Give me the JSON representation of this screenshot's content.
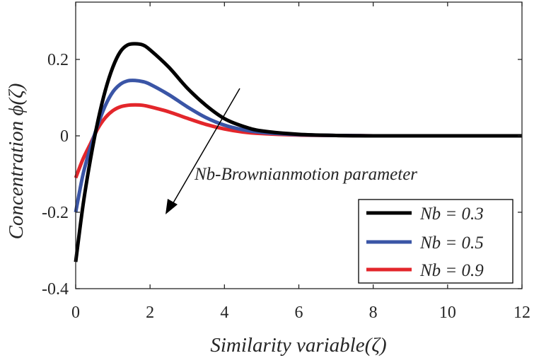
{
  "chart_data": {
    "type": "line",
    "xlabel": "Similarity variable(ζ)",
    "ylabel": "Concentration ϕ(ζ)",
    "xlim": [
      0,
      12
    ],
    "ylim": [
      -0.4,
      0.35
    ],
    "xticks": [
      0,
      2,
      4,
      6,
      8,
      10,
      12
    ],
    "xtick_labels": [
      "0",
      "2",
      "4",
      "6",
      "8",
      "10",
      "12"
    ],
    "yticks": [
      -0.4,
      -0.2,
      0,
      0.2
    ],
    "ytick_labels": [
      "-0.4",
      "-0.2",
      "0",
      "0.2"
    ],
    "grid": false,
    "legend_position": "bottom-right",
    "annotation": "Nb-Brownianmotion parameter",
    "x": [
      0,
      0.2,
      0.4,
      0.6,
      0.8,
      1.0,
      1.2,
      1.4,
      1.6,
      1.8,
      2.0,
      2.5,
      3.0,
      3.5,
      4.0,
      4.5,
      5.0,
      6.0,
      7.0,
      8.0,
      9.0,
      10.0,
      11.0,
      12.0
    ],
    "series": [
      {
        "name": "Nb = 0.3",
        "color": "#000000",
        "values": [
          -0.33,
          -0.18,
          -0.06,
          0.04,
          0.12,
          0.18,
          0.22,
          0.238,
          0.241,
          0.238,
          0.225,
          0.18,
          0.125,
          0.08,
          0.045,
          0.025,
          0.013,
          0.004,
          0.001,
          0,
          0,
          0,
          0,
          0
        ]
      },
      {
        "name": "Nb = 0.5",
        "color": "#3a55a6",
        "values": [
          -0.2,
          -0.1,
          -0.03,
          0.03,
          0.08,
          0.115,
          0.135,
          0.144,
          0.145,
          0.142,
          0.135,
          0.108,
          0.076,
          0.048,
          0.028,
          0.016,
          0.009,
          0.003,
          0.001,
          0,
          0,
          0,
          0,
          0
        ]
      },
      {
        "name": "Nb = 0.9",
        "color": "#e3262b",
        "values": [
          -0.11,
          -0.06,
          -0.02,
          0.02,
          0.048,
          0.066,
          0.076,
          0.08,
          0.081,
          0.08,
          0.076,
          0.063,
          0.046,
          0.03,
          0.018,
          0.01,
          0.006,
          0.002,
          0.001,
          0,
          0,
          0,
          0,
          0
        ]
      }
    ]
  }
}
